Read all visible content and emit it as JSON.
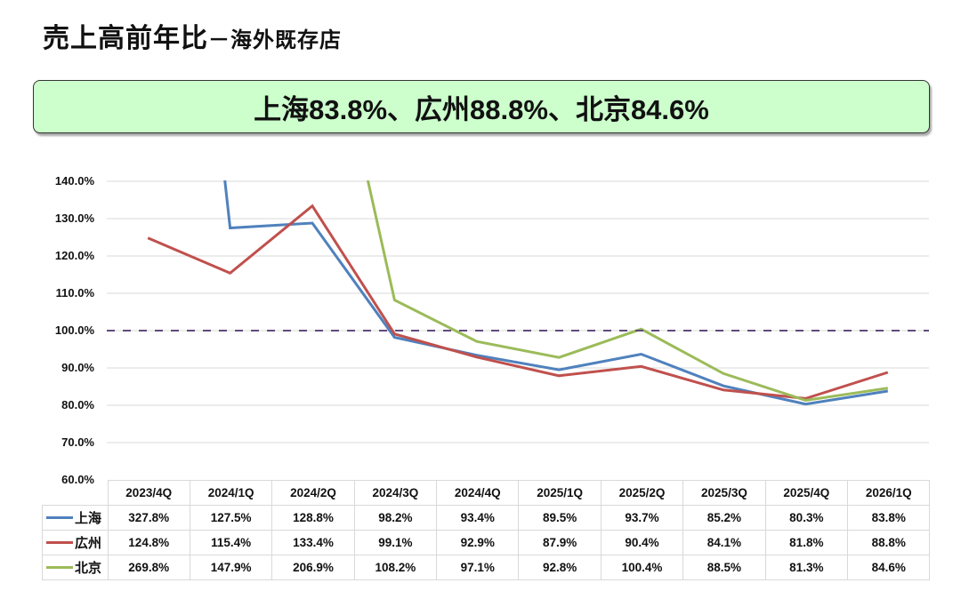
{
  "header": {
    "title_main": "売上高前年比",
    "title_sub": "－海外既存店"
  },
  "banner": {
    "text": "上海83.8%、広州88.8%、北京84.6%"
  },
  "colors": {
    "shanghai": "#4f81bd",
    "guangzhou": "#c0504d",
    "beijing": "#9bbb59",
    "reference_line": "#604a7b",
    "banner_bg": "#ccffcc",
    "gridline": "#d9d9d9"
  },
  "chart_data": {
    "type": "line",
    "title": "売上高前年比－海外既存店",
    "xlabel": "",
    "ylabel": "",
    "ylim": [
      0.6,
      1.4
    ],
    "y_ticks": [
      "140.0%",
      "130.0%",
      "120.0%",
      "110.0%",
      "100.0%",
      "90.0%",
      "80.0%",
      "70.0%",
      "60.0%"
    ],
    "grid": true,
    "legend_position": "data-table",
    "reference_line": {
      "y": 1.0,
      "style": "dashed",
      "label": "100.0%"
    },
    "categories": [
      "2023/4Q",
      "2024/1Q",
      "2024/2Q",
      "2024/3Q",
      "2024/4Q",
      "2025/1Q",
      "2025/2Q",
      "2025/3Q",
      "2025/4Q",
      "2026/1Q"
    ],
    "series": [
      {
        "name": "上海",
        "color": "#4f81bd",
        "values": [
          3.278,
          1.275,
          1.288,
          0.982,
          0.934,
          0.895,
          0.937,
          0.852,
          0.803,
          0.838
        ],
        "labels": [
          "327.8%",
          "127.5%",
          "128.8%",
          "98.2%",
          "93.4%",
          "89.5%",
          "93.7%",
          "85.2%",
          "80.3%",
          "83.8%"
        ]
      },
      {
        "name": "広州",
        "color": "#c0504d",
        "values": [
          1.248,
          1.154,
          1.334,
          0.991,
          0.929,
          0.879,
          0.904,
          0.841,
          0.818,
          0.888
        ],
        "labels": [
          "124.8%",
          "115.4%",
          "133.4%",
          "99.1%",
          "92.9%",
          "87.9%",
          "90.4%",
          "84.1%",
          "81.8%",
          "88.8%"
        ]
      },
      {
        "name": "北京",
        "color": "#9bbb59",
        "values": [
          2.698,
          1.479,
          2.069,
          1.082,
          0.971,
          0.928,
          1.004,
          0.885,
          0.813,
          0.846
        ],
        "labels": [
          "269.8%",
          "147.9%",
          "206.9%",
          "108.2%",
          "97.1%",
          "92.8%",
          "100.4%",
          "88.5%",
          "81.3%",
          "84.6%"
        ]
      }
    ]
  }
}
